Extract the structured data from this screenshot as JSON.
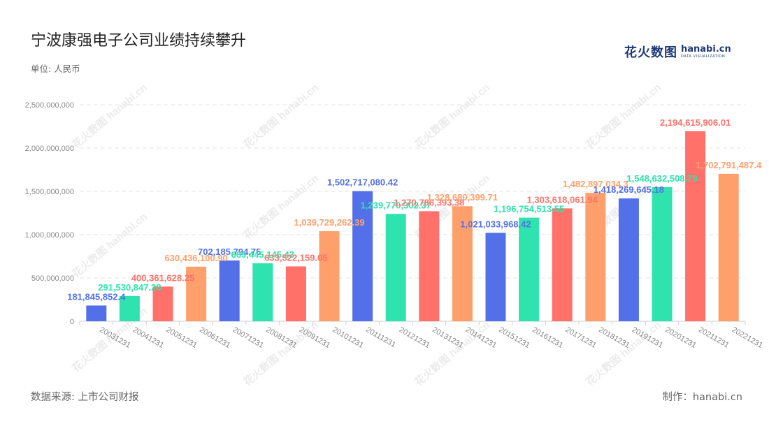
{
  "chart_data": {
    "type": "bar",
    "title": "宁波康强电子公司业绩持续攀升",
    "unit_label": "单位: 人民币",
    "categories": [
      "20031231",
      "20041231",
      "20051231",
      "20061231",
      "20071231",
      "20081231",
      "20091231",
      "20101231",
      "20111231",
      "20121231",
      "20131231",
      "20141231",
      "20151231",
      "20161231",
      "20171231",
      "20181231",
      "20191231",
      "20201231",
      "20211231",
      "20221231"
    ],
    "values": [
      181845852.4,
      291530847.28,
      400361628.25,
      630436100.9,
      702185794.75,
      669445145.43,
      633522159.05,
      1039729262.39,
      1502717080.42,
      1239770302.37,
      1270786393.38,
      1328680399.71,
      1021033968.42,
      1196754513.55,
      1303618061.94,
      1482897034.3,
      1418269645.18,
      1548632508.79,
      2194615906.01,
      1702791487.4
    ],
    "value_labels": [
      "181,845,852.4",
      "291,530,847.28",
      "400,361,628.25",
      "630,436,100.90",
      "702,185,794.75",
      "669,445,145.43",
      "633,522,159.05",
      "1,039,729,262.39",
      "1,502,717,080.42",
      "1,239,770,302.37",
      "1,270,786,393.38",
      "1,328,680,399.71",
      "1,021,033,968.42",
      "1,196,754,513.55",
      "1,303,618,061.94",
      "1,482,897,034.3",
      "1,418,269,645.18",
      "1,548,632,508.79",
      "2,194,615,906.01",
      "1,702,791,487.4"
    ],
    "y_ticks": [
      0,
      500000000,
      1000000000,
      1500000000,
      2000000000,
      2500000000
    ],
    "y_tick_labels": [
      "0",
      "500,000,000",
      "1,000,000,000",
      "1,500,000,000",
      "2,000,000,000",
      "2,500,000,000"
    ],
    "ylim": [
      0,
      2500000000
    ],
    "grid": true,
    "colors": [
      "#5470e8",
      "#2ee3ad",
      "#ff7169",
      "#ffa06c"
    ],
    "xlabel": "",
    "ylabel": ""
  },
  "brand": {
    "cn": "花火数图",
    "en": "hanabi.cn",
    "sub": "DATA VISUALIZATION"
  },
  "watermark_text": "花火数图 hanabi.cn",
  "footer": {
    "source": "数据来源: 上市公司财报",
    "maker": "制作：hanabi.cn"
  }
}
